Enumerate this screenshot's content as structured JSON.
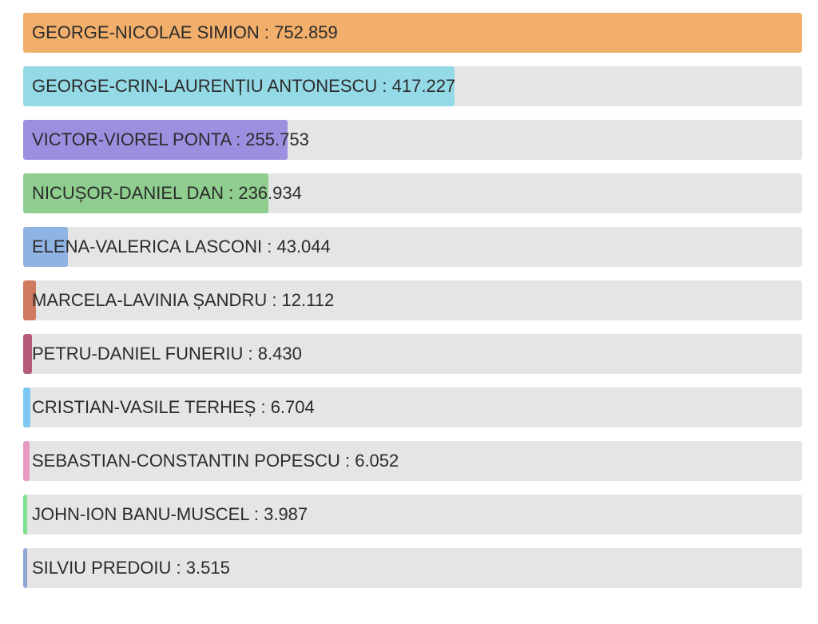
{
  "chart_data": {
    "type": "bar",
    "orientation": "horizontal",
    "grid": false,
    "categories": [
      "GEORGE-NICOLAE SIMION",
      "GEORGE-CRIN-LAURENȚIU ANTONESCU",
      "VICTOR-VIOREL PONTA",
      "NICUȘOR-DANIEL DAN",
      "ELENA-VALERICA LASCONI",
      "MARCELA-LAVINIA ȘANDRU",
      "PETRU-DANIEL FUNERIU",
      "CRISTIAN-VASILE TERHEȘ",
      "SEBASTIAN-CONSTANTIN POPESCU",
      "JOHN-ION BANU-MUSCEL",
      "SILVIU PREDOIU"
    ],
    "values": [
      752859,
      417227,
      255753,
      236934,
      43044,
      12112,
      8430,
      6704,
      6052,
      3987,
      3515
    ],
    "labels": [
      "GEORGE-NICOLAE SIMION : 752.859",
      "GEORGE-CRIN-LAURENȚIU ANTONESCU : 417.227",
      "VICTOR-VIOREL PONTA : 255.753",
      "NICUȘOR-DANIEL DAN : 236.934",
      "ELENA-VALERICA LASCONI : 43.044",
      "MARCELA-LAVINIA ȘANDRU : 12.112",
      "PETRU-DANIEL FUNERIU : 8.430",
      "CRISTIAN-VASILE TERHEȘ : 6.704",
      "SEBASTIAN-CONSTANTIN POPESCU : 6.052",
      "JOHN-ION BANU-MUSCEL : 3.987",
      "SILVIU PREDOIU : 3.515"
    ],
    "colors": [
      "#f2ae6b",
      "#94d9e6",
      "#9b8fe0",
      "#8fce8f",
      "#8fb4e3",
      "#cf7a5e",
      "#b35a7a",
      "#7cc8f5",
      "#e899c3",
      "#7fe08f",
      "#8ea8d2"
    ],
    "track_color": "#e5e5e5"
  }
}
